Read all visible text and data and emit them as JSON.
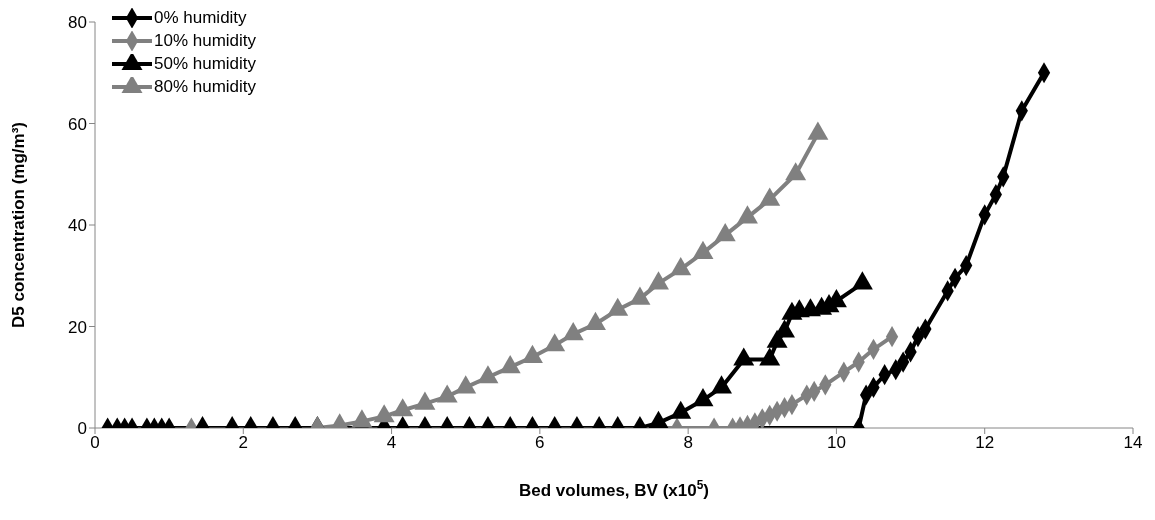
{
  "chart_data": {
    "type": "line",
    "xlabel": "Bed volumes, BV (x10$^{5}$)",
    "ylabel": "D5 concentration (mg/m³)",
    "xlim": [
      0,
      14
    ],
    "xticks": [
      0,
      2,
      4,
      6,
      8,
      10,
      12,
      14
    ],
    "ylim": [
      0,
      80
    ],
    "yticks": [
      0,
      20,
      40,
      60,
      80
    ],
    "grid": false,
    "legend": "top left",
    "line_style": "solid",
    "series": [
      {
        "name": "0% humidity",
        "color": "#000000",
        "marker": "diamond",
        "x": [
          0.17,
          0.3,
          0.4,
          0.5,
          0.7,
          0.8,
          0.9,
          1.0,
          10.3,
          10.4,
          10.5,
          10.65,
          10.8,
          10.9,
          11.0,
          11.1,
          11.2,
          11.5,
          11.6,
          11.75,
          12.0,
          12.15,
          12.25,
          12.5,
          12.8
        ],
        "values": [
          0,
          0,
          0,
          0,
          0,
          0,
          0,
          0,
          0,
          6.5,
          8,
          10.5,
          11.5,
          13,
          15,
          18,
          19.5,
          27,
          29.5,
          32,
          42,
          46,
          49.5,
          62.5,
          70
        ]
      },
      {
        "name": "10% humidity",
        "color": "#808080",
        "marker": "diamond",
        "x": [
          1.3,
          7.85,
          8.35,
          8.6,
          8.7,
          8.8,
          8.9,
          9.0,
          9.1,
          9.2,
          9.3,
          9.4,
          9.6,
          9.7,
          9.85,
          10.1,
          10.3,
          10.5,
          10.75
        ],
        "values": [
          0,
          0,
          0,
          0,
          0.2,
          0.5,
          1,
          1.8,
          2.5,
          3.3,
          4,
          4.6,
          6.5,
          7.2,
          8.5,
          11,
          13,
          15.5,
          18
        ]
      },
      {
        "name": "50% humidity",
        "color": "#000000",
        "marker": "triangle",
        "x": [
          1.45,
          1.85,
          2.1,
          2.4,
          2.7,
          3.0,
          3.3,
          3.6,
          3.9,
          4.15,
          4.45,
          4.75,
          5.05,
          5.3,
          5.6,
          5.9,
          6.2,
          6.5,
          6.8,
          7.05,
          7.35,
          7.6,
          7.9,
          8.2,
          8.45,
          8.75,
          9.1,
          9.2,
          9.3,
          9.4,
          9.5,
          9.65,
          9.8,
          9.9,
          10.0,
          10.35
        ],
        "values": [
          0,
          0,
          0,
          0,
          0,
          0,
          0,
          0,
          0,
          0,
          0,
          0,
          0,
          0,
          0,
          0,
          0,
          0,
          0,
          0,
          0,
          1,
          3,
          5.5,
          8,
          13.5,
          13.5,
          17,
          19,
          22.5,
          23,
          23.2,
          23.5,
          24,
          25,
          28.5
        ]
      },
      {
        "name": "80% humidity",
        "color": "#808080",
        "marker": "triangle",
        "x": [
          3.0,
          3.3,
          3.6,
          3.9,
          4.15,
          4.45,
          4.75,
          5.0,
          5.3,
          5.6,
          5.9,
          6.2,
          6.45,
          6.75,
          7.05,
          7.35,
          7.6,
          7.9,
          8.2,
          8.5,
          8.8,
          9.1,
          9.45,
          9.75
        ],
        "values": [
          0,
          0.5,
          1.3,
          2.3,
          3.5,
          4.8,
          6.2,
          8,
          10,
          12,
          14,
          16.3,
          18.5,
          20.5,
          23.3,
          25.5,
          28.5,
          31.3,
          34.5,
          38,
          41.5,
          45,
          50,
          58
        ]
      }
    ]
  }
}
